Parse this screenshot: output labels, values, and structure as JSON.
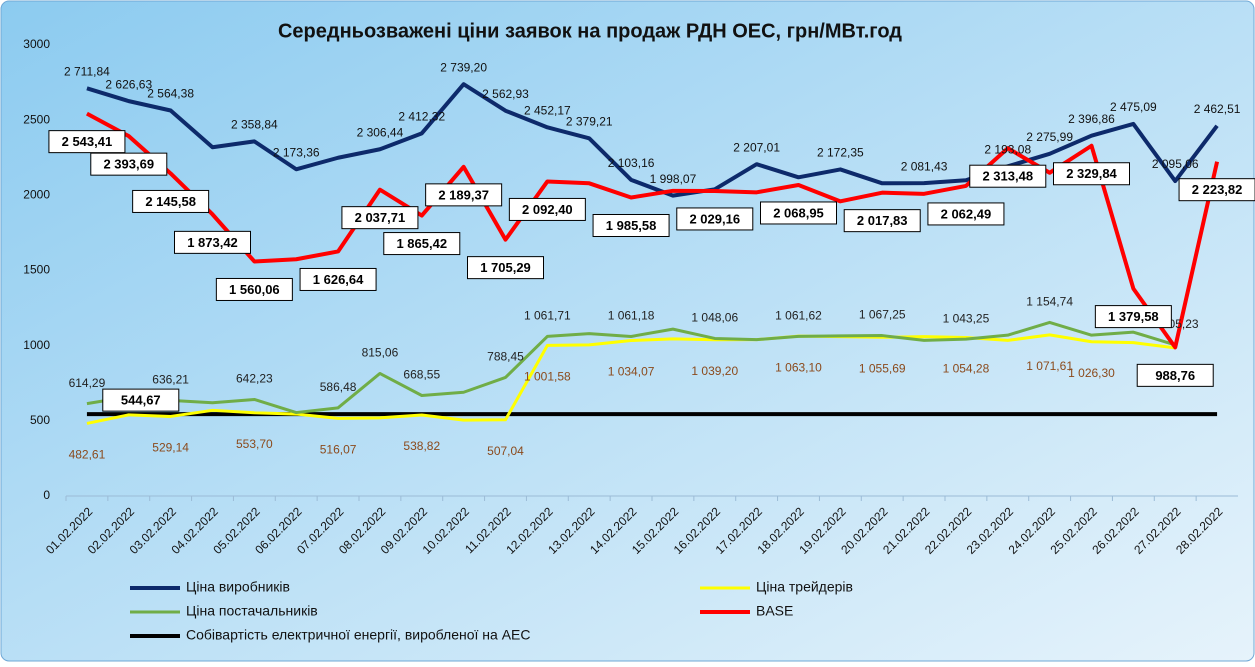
{
  "chart_data": {
    "type": "line",
    "title": "Середньозважені ціни заявок на продаж РДН ОЕС, грн/МВт.год",
    "categories": [
      "01.02.2022",
      "02.02.2022",
      "03.02.2022",
      "04.02.2022",
      "05.02.2022",
      "06.02.2022",
      "07.02.2022",
      "08.02.2022",
      "09.02.2022",
      "10.02.2022",
      "11.02.2022",
      "12.02.2022",
      "13.02.2022",
      "14.02.2022",
      "15.02.2022",
      "16.02.2022",
      "17.02.2022",
      "18.02.2022",
      "19.02.2022",
      "20.02.2022",
      "21.02.2022",
      "22.02.2022",
      "23.02.2022",
      "24.02.2022",
      "25.02.2022",
      "26.02.2022",
      "27.02.2022",
      "28.02.2022"
    ],
    "ylim": [
      0,
      3000
    ],
    "yticks": [
      0,
      500,
      1000,
      1500,
      2000,
      2500,
      3000
    ],
    "series": [
      {
        "name": "Ціна виробників",
        "color": "#0d2a6b",
        "values": [
          2711.84,
          2626.63,
          2564.38,
          2320,
          2358.84,
          2173.36,
          2250,
          2306.44,
          2412.32,
          2739.2,
          2562.93,
          2452.17,
          2379.21,
          2103.16,
          1998.07,
          2040,
          2207.01,
          2120,
          2172.35,
          2080,
          2081.43,
          2100,
          2193.08,
          2275.99,
          2396.86,
          2475.09,
          2095.06,
          2462.51
        ],
        "value_labels": [
          "2 711,84",
          "2 626,63",
          "2 564,38",
          null,
          "2 358,84",
          "2 173,36",
          null,
          "2 306,44",
          "2 412,32",
          "2 739,20",
          "2 562,93",
          "2 452,17",
          "2 379,21",
          "2 103,16",
          "1 998,07",
          null,
          "2 207,01",
          null,
          "2 172,35",
          null,
          "2 081,43",
          null,
          "2 193,08",
          "2 275,99",
          "2 396,86",
          "2 475,09",
          "2 095,06",
          "2 462,51"
        ]
      },
      {
        "name": "Ціна трейдерів",
        "color": "#ffff00",
        "values": [
          482.61,
          540,
          529.14,
          570,
          553.7,
          545,
          516.07,
          520,
          538.82,
          505,
          507.04,
          1001.58,
          1005,
          1034.07,
          1045,
          1039.2,
          1040,
          1063.1,
          1060,
          1055.69,
          1060,
          1054.28,
          1035,
          1071.61,
          1026.3,
          1020,
          985,
          null
        ],
        "value_labels": [
          "482,61",
          null,
          "529,14",
          null,
          "553,70",
          null,
          "516,07",
          null,
          "538,82",
          null,
          "507,04",
          "1 001,58",
          null,
          "1 034,07",
          null,
          "1 039,20",
          null,
          "1 063,10",
          null,
          "1 055,69",
          null,
          "1 054,28",
          null,
          "1 071,61",
          "1 026,30",
          null,
          null,
          null
        ]
      },
      {
        "name": "Ціна постачальників",
        "color": "#70ad47",
        "values": [
          614.29,
          660,
          636.21,
          620,
          642.23,
          555,
          586.48,
          815.06,
          668.55,
          690,
          788.45,
          1061.71,
          1080,
          1061.18,
          1110,
          1048.06,
          1040,
          1061.62,
          1065,
          1067.25,
          1035,
          1043.25,
          1070,
          1154.74,
          1070,
          1090,
          1005.23,
          null
        ],
        "value_labels": [
          "614,29",
          null,
          "636,21",
          null,
          "642,23",
          null,
          "586,48",
          "815,06",
          "668,55",
          null,
          "788,45",
          "1 061,71",
          null,
          "1 061,18",
          null,
          "1 048,06",
          null,
          "1 061,62",
          null,
          "1 067,25",
          null,
          "1 043,25",
          null,
          "1 154,74",
          null,
          null,
          "1 005,23",
          null
        ]
      },
      {
        "name": "BASE",
        "color": "#ff0000",
        "values": [
          2543.41,
          2393.69,
          2145.58,
          1873.42,
          1560.06,
          1575,
          1626.64,
          2037.71,
          1865.42,
          2189.37,
          1705.29,
          2092.4,
          2080,
          1985.58,
          2030,
          2029.16,
          2020,
          2068.95,
          1960,
          2017.83,
          2010,
          2062.49,
          2313.48,
          2150,
          2329.84,
          1379.58,
          988.76,
          2223.82
        ],
        "value_labels": [
          "2 543,41",
          "2 393,69",
          "2 145,58",
          "1 873,42",
          "1 560,06",
          null,
          "1 626,64",
          "2 037,71",
          "1 865,42",
          "2 189,37",
          "1 705,29",
          "2 092,40",
          null,
          "1 985,58",
          null,
          "2 029,16",
          null,
          "2 068,95",
          null,
          "2 017,83",
          null,
          "2 062,49",
          "2 313,48",
          null,
          "2 329,84",
          "1 379,58",
          "988,76",
          "2 223,82"
        ]
      },
      {
        "name": "Собівартість електричної енергії, виробленої на АЕС",
        "color": "#000000",
        "values": [
          544.67,
          544.67,
          544.67,
          544.67,
          544.67,
          544.67,
          544.67,
          544.67,
          544.67,
          544.67,
          544.67,
          544.67,
          544.67,
          544.67,
          544.67,
          544.67,
          544.67,
          544.67,
          544.67,
          544.67,
          544.67,
          544.67,
          544.67,
          544.67,
          544.67,
          544.67,
          544.67,
          544.67
        ],
        "value_labels": [
          null,
          "544,67",
          null,
          null,
          null,
          null,
          null,
          null,
          null,
          null,
          null,
          null,
          null,
          null,
          null,
          null,
          null,
          null,
          null,
          null,
          null,
          null,
          null,
          null,
          null,
          null,
          null,
          null
        ]
      }
    ]
  }
}
